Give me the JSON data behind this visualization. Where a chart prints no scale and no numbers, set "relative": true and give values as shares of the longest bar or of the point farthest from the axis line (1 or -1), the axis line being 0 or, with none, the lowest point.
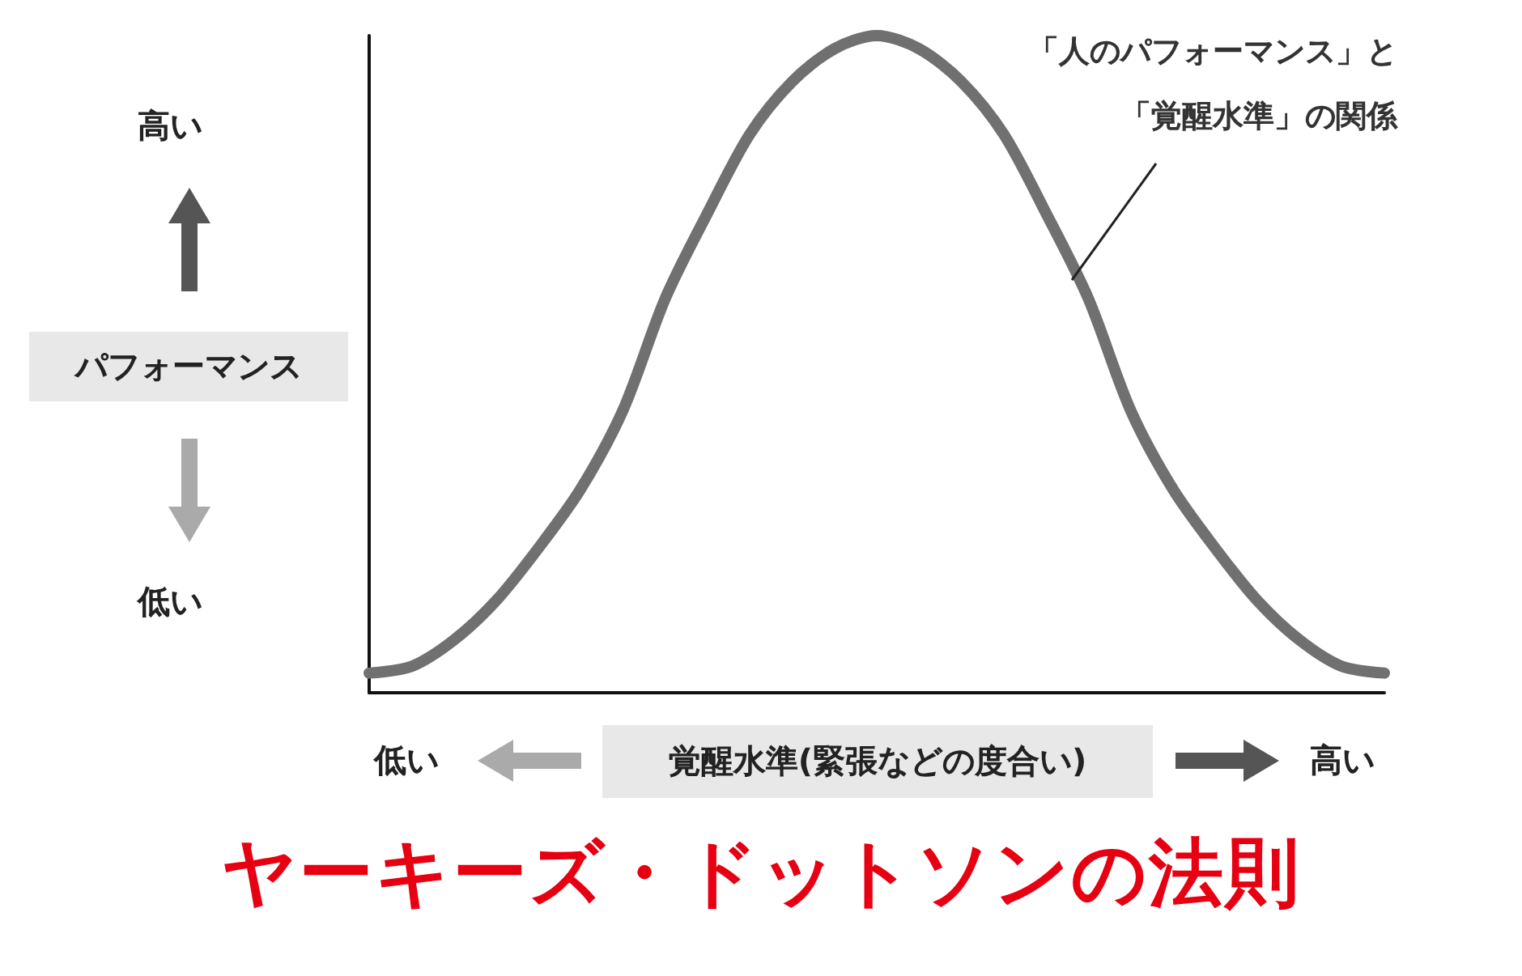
{
  "chart_data": {
    "type": "line",
    "title": "ヤーキーズ・ドットソンの法則",
    "xlabel": "覚醒水準(緊張などの度合い)",
    "ylabel": "パフォーマンス",
    "annotations": [
      "高い",
      "低い",
      "低い",
      "高い"
    ],
    "relative": true,
    "grid": false,
    "legend": false,
    "line_style": "solid",
    "categories": [
      null,
      null,
      null,
      null,
      null,
      null,
      null,
      null,
      null,
      null,
      null,
      null,
      null,
      null,
      null,
      null,
      null,
      null,
      null,
      null,
      null,
      null,
      null,
      null,
      null
    ],
    "series": [
      {
        "name": "「人のパフォーマンス」と「覚醒水準」の関係",
        "color": "#707070",
        "values": [
          0.03,
          0.04,
          0.08,
          0.14,
          0.22,
          0.31,
          0.43,
          0.6,
          0.73,
          0.85,
          0.93,
          0.98,
          1.0,
          0.98,
          0.93,
          0.85,
          0.73,
          0.6,
          0.43,
          0.31,
          0.22,
          0.14,
          0.08,
          0.04,
          0.03
        ]
      }
    ]
  }
}
